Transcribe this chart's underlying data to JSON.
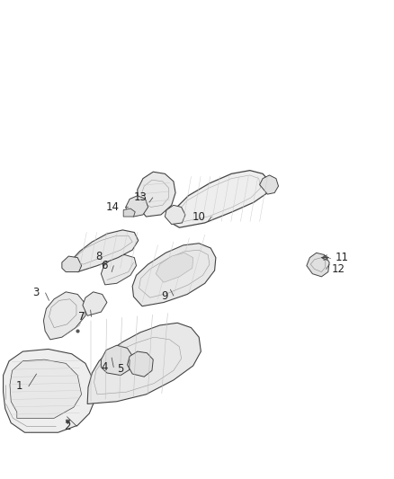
{
  "background_color": "#ffffff",
  "fig_width": 4.38,
  "fig_height": 5.33,
  "dpi": 100,
  "text_color": "#222222",
  "font_size": 8.5,
  "line_color": "#444444",
  "fill_color": "#f0f0f0",
  "label_positions": {
    "1": [
      0.065,
      0.195,
      0.1,
      0.225
    ],
    "2": [
      0.185,
      0.115,
      0.185,
      0.135
    ],
    "3": [
      0.108,
      0.385,
      0.135,
      0.375
    ],
    "4": [
      0.295,
      0.235,
      0.305,
      0.255
    ],
    "5": [
      0.335,
      0.235,
      0.335,
      0.255
    ],
    "6": [
      0.285,
      0.44,
      0.29,
      0.425
    ],
    "7": [
      0.225,
      0.34,
      0.24,
      0.355
    ],
    "8": [
      0.275,
      0.46,
      0.285,
      0.46
    ],
    "9": [
      0.44,
      0.385,
      0.445,
      0.395
    ],
    "10": [
      0.535,
      0.545,
      0.535,
      0.535
    ],
    "11": [
      0.84,
      0.465,
      0.805,
      0.465
    ],
    "12": [
      0.84,
      0.44,
      0.8,
      0.445
    ],
    "13": [
      0.38,
      0.585,
      0.395,
      0.575
    ],
    "14": [
      0.315,
      0.565,
      0.345,
      0.563
    ]
  }
}
